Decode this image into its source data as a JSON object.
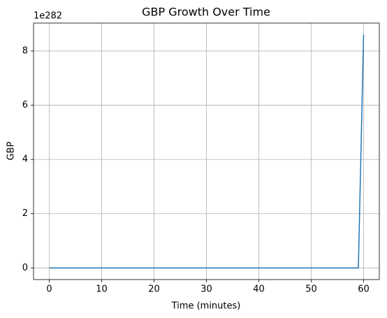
{
  "chart_data": {
    "type": "line",
    "title": "GBP Growth Over Time",
    "x_label": "Time (minutes)",
    "y_label": "GBP",
    "y_offset_label": "1e282",
    "x": [
      0,
      1,
      2,
      3,
      4,
      5,
      6,
      7,
      8,
      9,
      10,
      11,
      12,
      13,
      14,
      15,
      16,
      17,
      18,
      19,
      20,
      21,
      22,
      23,
      24,
      25,
      26,
      27,
      28,
      29,
      30,
      31,
      32,
      33,
      34,
      35,
      36,
      37,
      38,
      39,
      40,
      41,
      42,
      43,
      44,
      45,
      46,
      47,
      48,
      49,
      50,
      51,
      52,
      53,
      54,
      55,
      56,
      57,
      58,
      59,
      60
    ],
    "values": [
      0,
      0,
      0,
      0,
      0,
      0,
      0,
      0,
      0,
      0,
      0,
      0,
      0,
      0,
      0,
      0,
      0,
      0,
      0,
      0,
      0,
      0,
      0,
      0,
      0,
      0,
      0,
      0,
      0,
      0,
      0,
      0,
      0,
      0,
      0,
      0,
      0,
      0,
      0,
      0,
      0,
      0,
      0,
      0,
      0,
      0,
      0,
      0,
      0,
      0,
      0,
      0,
      0,
      0,
      0,
      0,
      0,
      0,
      0,
      0,
      8.6
    ],
    "color": "#1f77b4",
    "xlim": [
      -3,
      63
    ],
    "ylim": [
      -0.43,
      9.03
    ],
    "xticks": [
      0,
      10,
      20,
      30,
      40,
      50,
      60
    ],
    "yticks": [
      0,
      2,
      4,
      6,
      8
    ],
    "grid": true
  }
}
